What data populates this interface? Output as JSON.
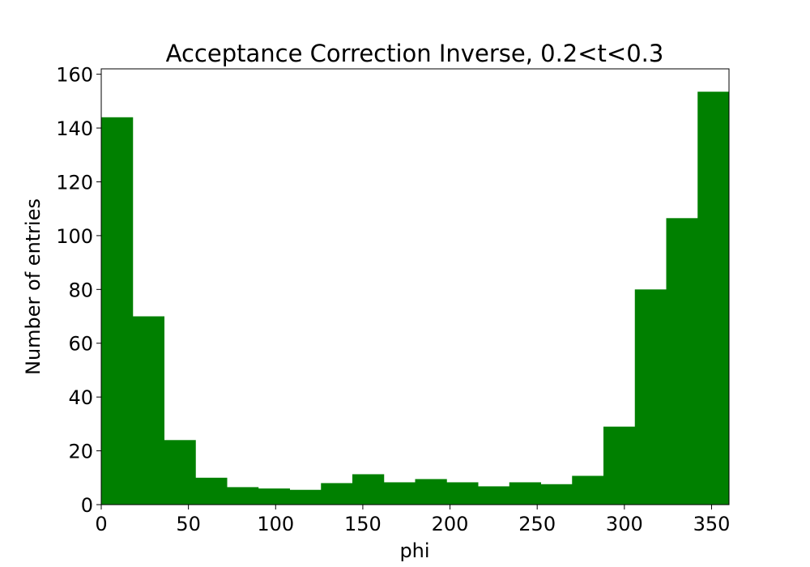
{
  "chart_data": {
    "type": "bar",
    "title": "Acceptance Correction Inverse, 0.2<t<0.3",
    "xlabel": "phi",
    "ylabel": "Number of entries",
    "bin_edges": [
      0,
      18,
      36,
      54,
      72,
      90,
      108,
      126,
      144,
      162,
      180,
      198,
      216,
      234,
      252,
      270,
      288,
      306,
      324,
      342,
      360
    ],
    "values": [
      144,
      70,
      24,
      10,
      6.5,
      6,
      5.5,
      8,
      11.3,
      8.3,
      9.5,
      8.3,
      6.8,
      8.3,
      7.6,
      10.7,
      29,
      80,
      106.5,
      153.5
    ],
    "bar_color": "#008000",
    "xlim": [
      0,
      360
    ],
    "ylim": [
      0,
      162
    ],
    "xticks": [
      0,
      50,
      100,
      150,
      200,
      250,
      300,
      350
    ],
    "yticks": [
      0,
      20,
      40,
      60,
      80,
      100,
      120,
      140,
      160
    ],
    "grid": false,
    "legend": "none"
  }
}
